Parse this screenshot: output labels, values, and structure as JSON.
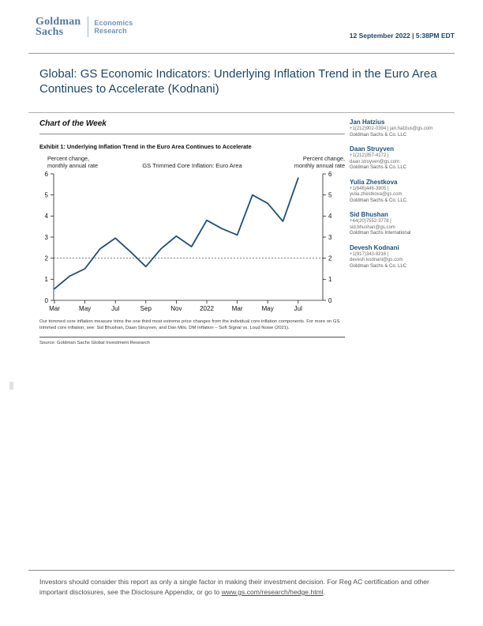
{
  "header": {
    "logo_line1": "Goldman",
    "logo_line2": "Sachs",
    "division_line1": "Economics",
    "division_line2": "Research",
    "date": "12 September 2022 | 5:38PM EDT"
  },
  "title": "Global: GS Economic Indicators: Underlying Inflation Trend in the Euro Area Continues to Accelerate (Kodnani)",
  "section": {
    "heading": "Chart of the Week"
  },
  "exhibit": {
    "title": "Exhibit 1: Underlying Inflation Trend in the Euro Area Continues to Accelerate",
    "left_axis_caption": "Percent change,\nmonthly annual rate",
    "right_axis_caption": "Percent change,\nmonthly annual rate",
    "chart_title": "GS Trimmed Core Inflation: Euro Area",
    "footnote": "Our trimmed core inflation measure trims the one third most extreme price changes from the individual core inflation components. For more on GS trimmed core inflation, see: Sid Bhushan, Daan Struyven, and Dan Milo, DM Inflation – Soft Signal vs. Loud Noise (2021).",
    "source": "Source: Goldman Sachs Global Investment Research"
  },
  "chart_data": {
    "type": "line",
    "title": "GS Trimmed Core Inflation: Euro Area",
    "ylabel": "Percent change, monthly annual rate",
    "x": [
      "Mar 2021",
      "Apr 2021",
      "May 2021",
      "Jun 2021",
      "Jul 2021",
      "Aug 2021",
      "Sep 2021",
      "Oct 2021",
      "Nov 2021",
      "Dec 2021",
      "Jan 2022",
      "Feb 2022",
      "Mar 2022",
      "Apr 2022",
      "May 2022",
      "Jun 2022",
      "Jul 2022"
    ],
    "values": [
      0.55,
      1.15,
      1.5,
      2.45,
      2.95,
      2.3,
      1.6,
      2.45,
      3.05,
      2.55,
      3.8,
      3.4,
      3.1,
      5.0,
      4.6,
      3.75,
      5.8
    ],
    "x_tick_positions": [
      0,
      2,
      4,
      6,
      8,
      10,
      12,
      14,
      16
    ],
    "x_tick_labels": [
      "Mar",
      "May",
      "Jul",
      "Sep",
      "Nov",
      "2022",
      "Mar",
      "May",
      "Jul"
    ],
    "ylim": [
      0,
      6
    ],
    "y_ticks": [
      0,
      1,
      2,
      3,
      4,
      5,
      6
    ],
    "reference_line": 2,
    "line_color": "#1f4e79",
    "grid": false,
    "legend": "none"
  },
  "authors": [
    {
      "name": "Jan Hatzius",
      "contact_lines": [
        "+1(212)902-0394 | jan.hatzius@gs.com"
      ],
      "company": "Goldman Sachs & Co. LLC"
    },
    {
      "name": "Daan Struyven",
      "contact_lines": [
        "+1(212)357-4172 |",
        "daan.struyven@gs.com"
      ],
      "company": "Goldman Sachs & Co. LLC"
    },
    {
      "name": "Yulia Zhestkova",
      "contact_lines": [
        "+1(646)446-3905 |",
        "yulia.zhestkova@gs.com"
      ],
      "company": "Goldman Sachs & Co. LLC"
    },
    {
      "name": "Sid Bhushan",
      "contact_lines": [
        "+44(20)7552-3778 |",
        "sid.bhushan@gs.com"
      ],
      "company": "Goldman Sachs International"
    },
    {
      "name": "Devesh Kodnani",
      "contact_lines": [
        "+1(917)343-9216 |",
        "devesh.kodnani@gs.com"
      ],
      "company": "Goldman Sachs & Co. LLC"
    }
  ],
  "footer": {
    "text_before": "Investors should consider this report as only a single factor in making their investment decision. For Reg AC certification and other important disclosures, see the Disclosure Appendix, or go to ",
    "link": "www.gs.com/research/hedge.html",
    "text_after": "."
  },
  "colors": {
    "brand_blue": "#56779f",
    "title_blue": "#1e4566",
    "line_blue": "#1f4e79",
    "text_gray": "#4d4d4d",
    "rule_gray": "#9a9a9a"
  }
}
